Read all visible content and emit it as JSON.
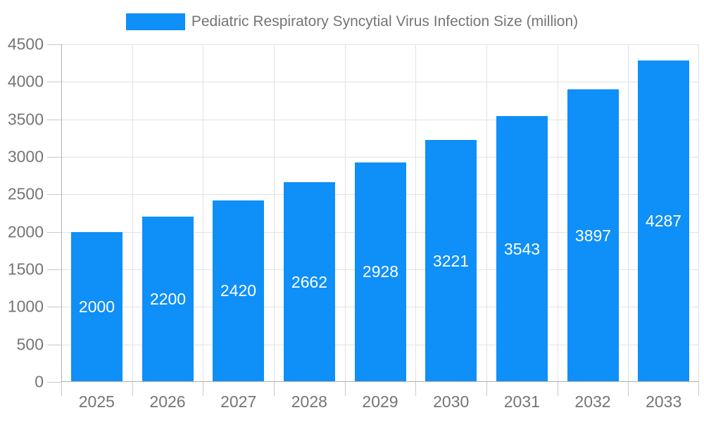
{
  "chart_data": {
    "type": "bar",
    "title": "Pediatric Respiratory Syncytial Virus Infection Size (million)",
    "legend": {
      "position": "top",
      "entries": [
        "Pediatric Respiratory Syncytial Virus Infection Size (million)"
      ]
    },
    "categories": [
      "2025",
      "2026",
      "2027",
      "2028",
      "2029",
      "2030",
      "2031",
      "2032",
      "2033"
    ],
    "series": [
      {
        "name": "Pediatric Respiratory Syncytial Virus Infection Size (million)",
        "values": [
          2000,
          2200,
          2420,
          2662,
          2928,
          3221,
          3543,
          3897,
          4287
        ]
      }
    ],
    "value_labels_shown_inside_bars": true,
    "xlabel": "",
    "ylabel": "",
    "ylim": [
      0,
      4500
    ],
    "ytick_step": 500,
    "yticks": [
      0,
      500,
      1000,
      1500,
      2000,
      2500,
      3000,
      3500,
      4000,
      4500
    ],
    "grid": true,
    "colors": {
      "bar": "#0f8ff8",
      "gridline": "#e2e2e2",
      "axis_line": "#b0b0b0",
      "tick": "#c9c9c9",
      "axis_text": "#757575",
      "value_label": "#ffffff",
      "background": "#ffffff"
    }
  }
}
